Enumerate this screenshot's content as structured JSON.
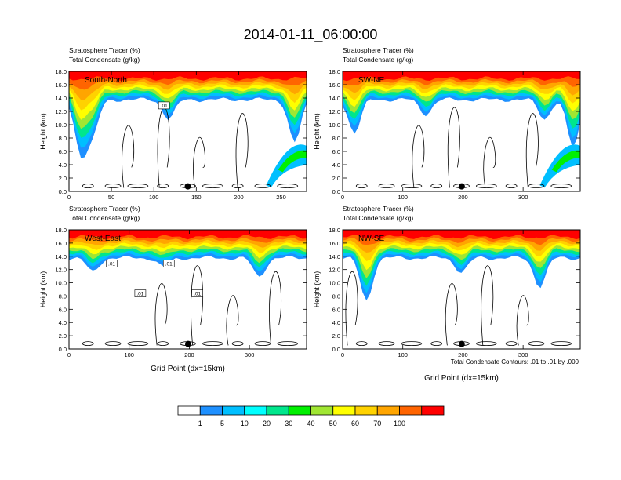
{
  "title": "2014-01-11_06:00:00",
  "footnote": "Total Condensate Contours: .01 to .01 by .000",
  "colorbar": {
    "labels": [
      "1",
      "5",
      "10",
      "20",
      "30",
      "40",
      "50",
      "60",
      "70",
      "100"
    ],
    "colors": [
      "#ffffff",
      "#1e90ff",
      "#00bfff",
      "#00ffff",
      "#00e68c",
      "#00f000",
      "#a0e632",
      "#ffff00",
      "#ffd200",
      "#ffa500",
      "#ff6400",
      "#ff0000"
    ]
  },
  "chart_data": [
    {
      "type": "heatmap",
      "title_lines": [
        "Stratosphere Tracer   (%)",
        "Total Condensate   (g/kg)"
      ],
      "panel_label": "South-North",
      "xlabel": "",
      "ylabel": "Height (km)",
      "xlim": [
        0,
        280
      ],
      "ylim": [
        0,
        18
      ],
      "xticks": [
        0,
        50,
        100,
        150,
        200,
        250
      ],
      "yticks": [
        "0.0",
        "2.0",
        "4.0",
        "6.0",
        "8.0",
        "10.0",
        "12.0",
        "14.0",
        "16.0",
        "18.0"
      ],
      "contour_labels": [
        ".01"
      ],
      "marker_x": 140
    },
    {
      "type": "heatmap",
      "title_lines": [
        "Stratosphere Tracer   (%)",
        "Total Condensate   (g/kg)"
      ],
      "panel_label": "SW-NE",
      "xlabel": "",
      "ylabel": "Height (km)",
      "xlim": [
        0,
        395
      ],
      "ylim": [
        0,
        18
      ],
      "xticks": [
        0,
        100,
        200,
        300
      ],
      "yticks": [
        "0.0",
        "2.0",
        "4.0",
        "6.0",
        "8.0",
        "10.0",
        "12.0",
        "14.0",
        "16.0",
        "18.0"
      ],
      "contour_labels": [],
      "marker_x": 198
    },
    {
      "type": "heatmap",
      "title_lines": [
        "Stratosphere Tracer   (%)",
        "Total Condensate   (g/kg)"
      ],
      "panel_label": "West-East",
      "xlabel": "Grid Point (dx=15km)",
      "ylabel": "Height (km)",
      "xlim": [
        0,
        395
      ],
      "ylim": [
        0,
        18
      ],
      "xticks": [
        0,
        100,
        200,
        300
      ],
      "yticks": [
        "0.0",
        "2.0",
        "4.0",
        "6.0",
        "8.0",
        "10.0",
        "12.0",
        "14.0",
        "16.0",
        "18.0"
      ],
      "contour_labels": [
        ".01",
        ".01",
        ".01",
        ".01"
      ],
      "marker_x": 198
    },
    {
      "type": "heatmap",
      "title_lines": [
        "Stratosphere Tracer   (%)",
        "Total Condensate   (g/kg)"
      ],
      "panel_label": "NW-SE",
      "xlabel": "Grid Point (dx=15km)",
      "ylabel": "Height (km)",
      "xlim": [
        0,
        395
      ],
      "ylim": [
        0,
        18
      ],
      "xticks": [
        0,
        100,
        200,
        300
      ],
      "yticks": [
        "0.0",
        "2.0",
        "4.0",
        "6.0",
        "8.0",
        "10.0",
        "12.0",
        "14.0",
        "16.0",
        "18.0"
      ],
      "contour_labels": [],
      "marker_x": 198
    }
  ]
}
